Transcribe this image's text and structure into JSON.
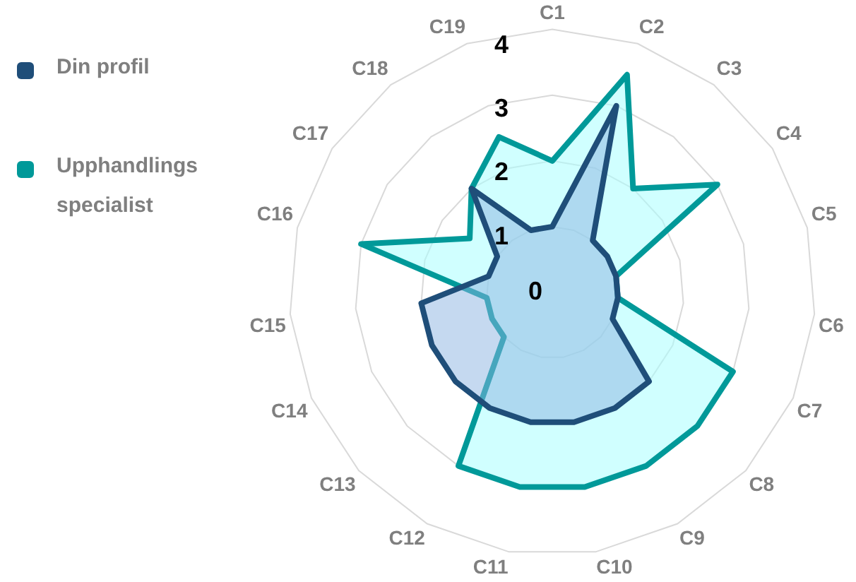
{
  "chart_data": {
    "type": "radar",
    "categories": [
      "C1",
      "C2",
      "C3",
      "C4",
      "C5",
      "C6",
      "C7",
      "C8",
      "C9",
      "C10",
      "C11",
      "C12",
      "C13",
      "C14",
      "C15",
      "C16",
      "C17",
      "C18",
      "C19"
    ],
    "series": [
      {
        "name": "Din profil",
        "color": "#1f4e79",
        "values": [
          1,
          3,
          1,
          1,
          1,
          1,
          1,
          2,
          2,
          2,
          2,
          2,
          2,
          2,
          2,
          1,
          1,
          2,
          1
        ]
      },
      {
        "name": "Upphandlingsspecialist",
        "color": "#009999",
        "values": [
          2,
          3.5,
          2,
          3,
          1,
          1,
          3,
          3,
          3,
          3,
          3,
          3,
          1,
          1,
          1,
          3,
          1.5,
          2,
          2.5
        ]
      }
    ],
    "ylim": [
      0,
      4
    ],
    "yticks": [
      0,
      1,
      2,
      3,
      4
    ],
    "grid": true,
    "legend": "left"
  }
}
